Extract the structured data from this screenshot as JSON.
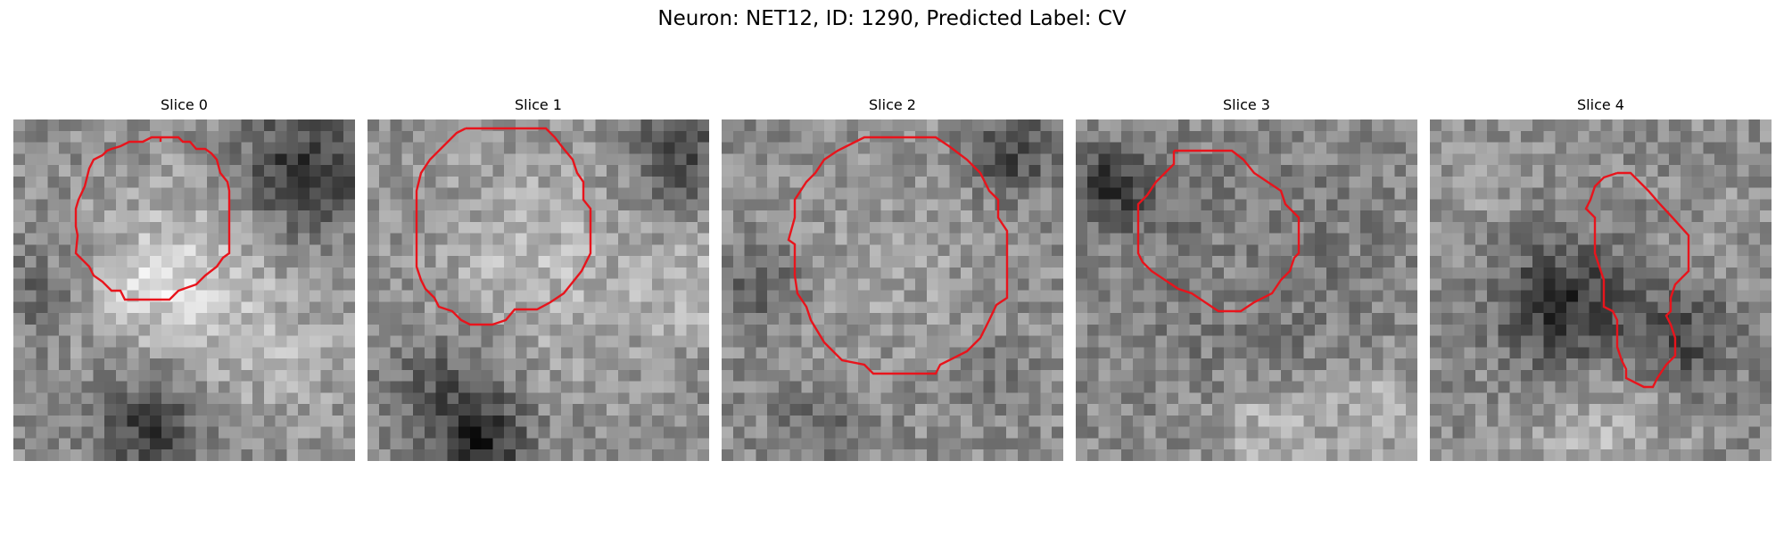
{
  "figure": {
    "title": "Neuron: NET12, ID: 1290, Predicted Label: CV",
    "contour_color": "#e8141c"
  },
  "panels": [
    {
      "title": "Slice 0"
    },
    {
      "title": "Slice 1"
    },
    {
      "title": "Slice 2"
    },
    {
      "title": "Slice 3"
    },
    {
      "title": "Slice 4"
    }
  ]
}
